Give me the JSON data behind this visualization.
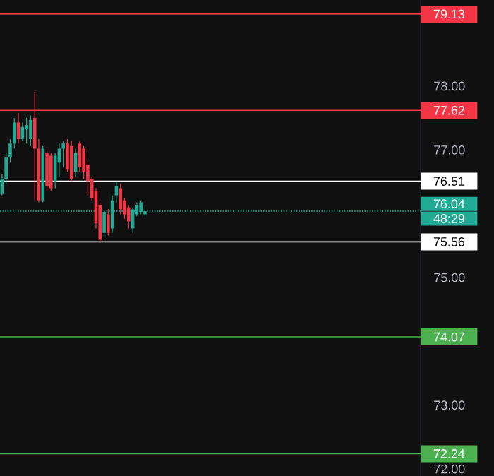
{
  "chart_data": {
    "type": "candlestick",
    "categories": [
      null,
      null,
      null,
      null,
      null,
      null,
      null,
      null,
      null,
      null,
      null,
      null,
      null,
      null,
      null,
      null,
      null,
      null,
      null,
      null,
      null,
      null,
      null,
      null,
      null,
      null,
      null,
      null,
      null,
      null,
      null,
      null,
      null,
      null,
      null,
      null,
      null,
      null,
      null,
      null,
      null,
      null,
      null,
      null,
      null,
      null,
      null,
      null,
      null,
      null,
      null,
      null,
      null,
      null,
      null,
      null,
      null,
      null,
      null,
      null,
      null,
      null,
      null,
      null,
      null,
      null,
      null,
      null,
      null,
      null,
      null,
      null,
      null,
      null,
      null,
      null,
      null,
      null,
      null,
      null,
      null,
      null,
      null,
      null,
      null,
      null,
      null,
      null,
      null,
      null,
      null,
      null,
      null,
      null,
      null,
      null,
      null,
      null,
      null,
      null,
      null,
      null,
      null
    ],
    "ohlc": [
      [
        76.32,
        76.62,
        76.29,
        76.55
      ],
      [
        76.55,
        76.95,
        76.47,
        76.88
      ],
      [
        76.88,
        77.17,
        76.8,
        77.1
      ],
      [
        77.1,
        77.5,
        77.02,
        77.43
      ],
      [
        77.43,
        77.58,
        77.1,
        77.17
      ],
      [
        77.17,
        77.43,
        77.14,
        77.36
      ],
      [
        77.32,
        77.5,
        77.1,
        77.39
      ],
      [
        77.17,
        77.54,
        77.06,
        77.47
      ],
      [
        77.5,
        77.91,
        76.21,
        77.02
      ],
      [
        77.02,
        77.17,
        76.18,
        76.21
      ],
      [
        76.21,
        77.06,
        76.18,
        77.02
      ],
      [
        76.95,
        77.02,
        76.36,
        76.43
      ],
      [
        76.91,
        76.95,
        76.36,
        76.4
      ],
      [
        76.51,
        76.95,
        76.4,
        76.91
      ],
      [
        76.8,
        77.1,
        76.58,
        77.02
      ],
      [
        77.02,
        77.14,
        76.73,
        77.1
      ],
      [
        77.1,
        77.17,
        76.66,
        76.69
      ],
      [
        77.06,
        77.14,
        76.51,
        76.55
      ],
      [
        76.66,
        77.02,
        76.58,
        76.95
      ],
      [
        77.1,
        77.14,
        76.66,
        76.73
      ],
      [
        77.02,
        77.06,
        76.55,
        76.66
      ],
      [
        76.77,
        76.8,
        76.29,
        76.51
      ],
      [
        76.55,
        76.58,
        76.21,
        76.25
      ],
      [
        76.36,
        76.4,
        75.77,
        75.85
      ],
      [
        76.14,
        76.18,
        75.56,
        75.59
      ],
      [
        75.7,
        76.07,
        75.62,
        76.03
      ],
      [
        75.99,
        76.07,
        75.66,
        75.7
      ],
      [
        75.77,
        76.29,
        75.7,
        76.21
      ],
      [
        76.29,
        76.51,
        76.18,
        76.43
      ],
      [
        76.4,
        76.47,
        75.99,
        76.07
      ],
      [
        76.21,
        76.25,
        75.92,
        75.99
      ],
      [
        76.1,
        76.14,
        75.77,
        75.88
      ],
      [
        75.77,
        76.1,
        75.7,
        76.07
      ],
      [
        75.99,
        76.18,
        75.96,
        76.14
      ],
      [
        76.03,
        76.21,
        75.99,
        76.18
      ],
      [
        75.99,
        76.1,
        75.96,
        76.04
      ],
      null,
      null,
      null,
      null,
      null,
      null,
      null,
      null,
      null,
      null,
      null,
      null,
      null,
      null,
      null,
      null,
      null,
      null,
      null,
      null,
      null,
      null,
      null,
      null,
      null,
      null,
      null,
      null,
      null,
      null,
      null,
      null,
      null,
      null,
      null,
      null,
      null,
      null,
      null,
      null,
      null,
      null,
      null,
      null,
      null,
      null,
      null,
      null,
      null,
      null,
      null,
      null,
      null,
      null,
      null,
      null,
      null,
      null,
      null,
      null,
      null,
      null,
      null,
      null,
      null,
      null,
      null
    ],
    "ylim": [
      71.89,
      79.35
    ],
    "yticks": [
      {
        "value": 72,
        "label": "72.00"
      },
      {
        "value": 73,
        "label": "73.00"
      },
      {
        "value": 75,
        "label": "75.00"
      },
      {
        "value": 77,
        "label": "77.00"
      },
      {
        "value": 78,
        "label": "78.00"
      }
    ],
    "ref_lines": [
      {
        "axis": "y",
        "value": 79.13,
        "label": "79.13",
        "color": "#f23645",
        "line_style": "solid"
      },
      {
        "axis": "y",
        "value": 77.62,
        "label": "77.62",
        "color": "#f23645",
        "line_style": "solid"
      },
      {
        "axis": "y",
        "value": 76.51,
        "label": "76.51",
        "color": "#ffffff",
        "line_style": "solid"
      },
      {
        "axis": "y",
        "value": 76.04,
        "label": "76.04",
        "color": "#22ab94",
        "line_style": "dotted"
      },
      {
        "axis": "y",
        "value": 75.56,
        "label": "75.56",
        "color": "#ffffff",
        "line_style": "solid"
      },
      {
        "axis": "y",
        "value": 74.07,
        "label": "74.07",
        "color": "#4caf50",
        "line_style": "solid"
      },
      {
        "axis": "y",
        "value": 72.24,
        "label": "72.24",
        "color": "#4caf50",
        "line_style": "solid"
      }
    ],
    "annotations": [
      "48:29"
    ]
  }
}
